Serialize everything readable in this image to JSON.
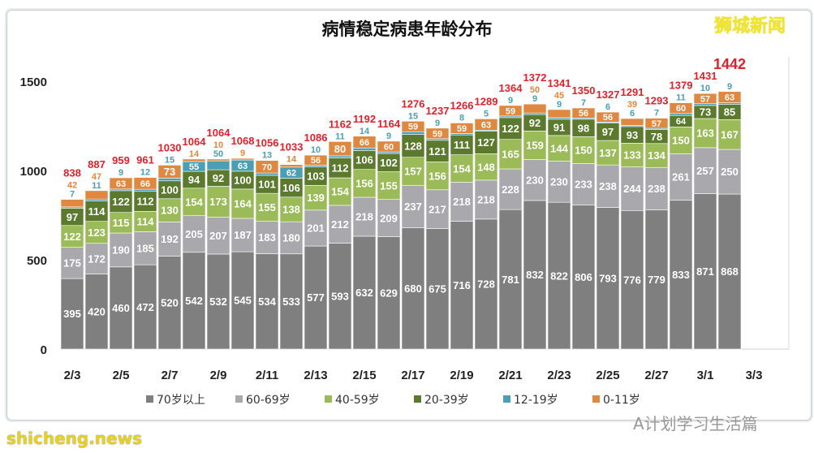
{
  "chart_data": {
    "type": "bar",
    "stacked": true,
    "title": "病情稳定病患年龄分布",
    "categories": [
      "2/3",
      "2/4",
      "2/5",
      "2/6",
      "2/7",
      "2/8",
      "2/9",
      "2/10",
      "2/11",
      "2/12",
      "2/13",
      "2/14",
      "2/15",
      "2/16",
      "2/17",
      "2/18",
      "2/19",
      "2/20",
      "2/21",
      "2/22",
      "2/23",
      "2/24",
      "2/25",
      "2/26",
      "2/27",
      "2/28",
      "3/1",
      "3/2"
    ],
    "xtick_labels": [
      "2/3",
      "2/5",
      "2/7",
      "2/9",
      "2/11",
      "2/13",
      "2/15",
      "2/17",
      "2/19",
      "2/21",
      "2/23",
      "2/25",
      "2/27",
      "3/1",
      "3/3"
    ],
    "ytick_labels": [
      "0",
      "500",
      "1000",
      "1500"
    ],
    "ylim": [
      0,
      1500
    ],
    "grid": false,
    "legend_position": "bottom",
    "series": [
      {
        "name": "70岁以上",
        "color": "#7f7f7f",
        "values": [
          395,
          420,
          460,
          472,
          520,
          542,
          532,
          545,
          534,
          533,
          577,
          593,
          632,
          629,
          680,
          675,
          716,
          728,
          781,
          832,
          822,
          806,
          793,
          776,
          779,
          833,
          871,
          868
        ]
      },
      {
        "name": "60-69岁",
        "color": "#a9a9ad",
        "values": [
          175,
          172,
          190,
          185,
          192,
          205,
          207,
          187,
          183,
          180,
          201,
          212,
          218,
          209,
          237,
          217,
          218,
          218,
          228,
          230,
          230,
          233,
          238,
          244,
          238,
          261,
          257,
          250
        ]
      },
      {
        "name": "40-59岁",
        "color": "#9bbb59",
        "values": [
          122,
          123,
          115,
          114,
          130,
          154,
          173,
          164,
          155,
          138,
          139,
          154,
          156,
          155,
          157,
          156,
          154,
          148,
          165,
          159,
          144,
          150,
          137,
          133,
          134,
          150,
          163,
          167
        ]
      },
      {
        "name": "20-39岁",
        "color": "#5b7a2e",
        "values": [
          97,
          114,
          122,
          112,
          100,
          94,
          92,
          100,
          101,
          106,
          103,
          112,
          106,
          102,
          128,
          121,
          111,
          127,
          122,
          92,
          91,
          98,
          97,
          93,
          78,
          64,
          73,
          85
        ]
      },
      {
        "name": "12-19岁",
        "color": "#4a9fb5",
        "values": [
          7,
          11,
          9,
          12,
          15,
          55,
          50,
          63,
          13,
          62,
          10,
          11,
          14,
          9,
          15,
          9,
          8,
          5,
          9,
          9,
          9,
          7,
          6,
          6,
          7,
          11,
          10,
          9
        ]
      },
      {
        "name": "0-11岁",
        "color": "#e0883f",
        "values": [
          42,
          47,
          63,
          66,
          73,
          14,
          10,
          9,
          70,
          14,
          56,
          80,
          66,
          60,
          59,
          59,
          59,
          63,
          59,
          50,
          45,
          56,
          56,
          39,
          57,
          60,
          57,
          63
        ]
      }
    ],
    "totals": [
      838,
      887,
      959,
      961,
      1030,
      1064,
      1064,
      1068,
      1056,
      1033,
      1086,
      1162,
      1192,
      1164,
      1276,
      1237,
      1266,
      1289,
      1364,
      1372,
      1341,
      1350,
      1327,
      1291,
      1293,
      1379,
      1431,
      1442
    ],
    "total_label_color": "#e0202a"
  },
  "watermarks": {
    "top_right": "狮城新闻",
    "bottom_right": "A计划学习生活篇",
    "bottom_left": "shicheng.news"
  }
}
